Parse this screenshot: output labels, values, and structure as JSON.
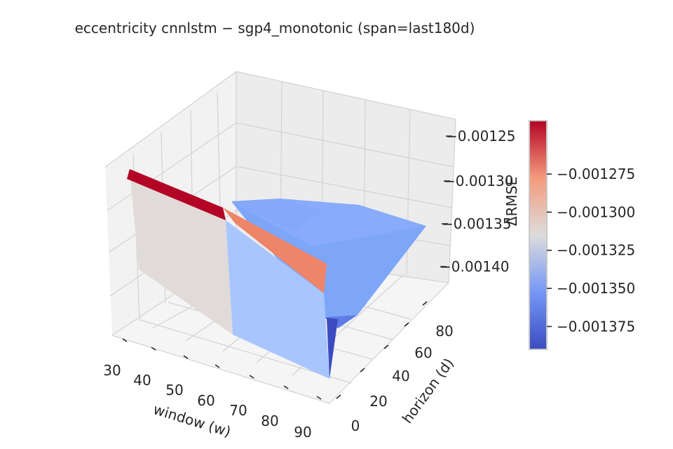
{
  "chart_data": {
    "type": "surface3d",
    "title": "eccentricity  cnnlstm − sgp4_monotonic  (span=last180d)",
    "xlabel": "window (w)",
    "ylabel": "horizon (d)",
    "zlabel": "ΔRMSE",
    "x_ticks": [
      "30",
      "40",
      "50",
      "60",
      "70",
      "80",
      "90"
    ],
    "y_ticks": [
      "0",
      "20",
      "40",
      "60",
      "80"
    ],
    "z_ticks": [
      "−0.00125",
      "−0.00130",
      "−0.00135",
      "−0.00140"
    ],
    "z_ticks_value": [
      -0.00125,
      -0.0013,
      -0.00135,
      -0.0014
    ],
    "xlim": [
      30,
      90
    ],
    "ylim": [
      0,
      90
    ],
    "zlim": [
      -0.00143,
      -0.00123
    ],
    "grid": true,
    "x": [
      30,
      60,
      90
    ],
    "y": [
      7,
      30,
      90
    ],
    "z": [
      [
        -0.001265,
        -0.001325,
        -0.00133
      ],
      [
        -0.001275,
        -0.00136,
        -0.00134
      ],
      [
        -0.001295,
        -0.00139,
        -0.00137
      ]
    ],
    "colorbar": {
      "colormap": "coolwarm",
      "ticks": [
        "−0.001275",
        "−0.001300",
        "−0.001325",
        "−0.001350",
        "−0.001375"
      ],
      "ticks_value": [
        -0.001275,
        -0.0013,
        -0.001325,
        -0.00135,
        -0.001375
      ],
      "range": [
        -0.00139,
        -0.00124
      ]
    }
  }
}
